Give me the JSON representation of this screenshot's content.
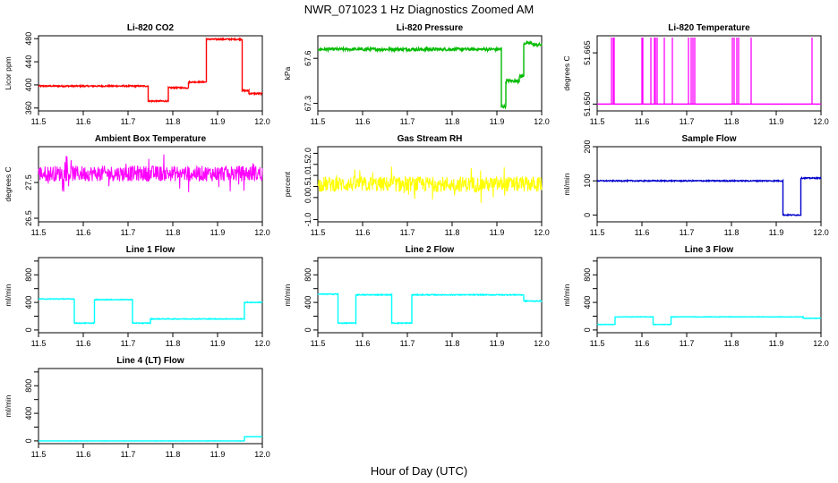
{
  "title": "NWR_071023  1 Hz Diagnostics Zoomed AM",
  "xlabel": "Hour of Day (UTC)",
  "chart_data": [
    {
      "type": "line",
      "title": "Li-820 CO2",
      "ylabel": "Licor ppm",
      "color": "#ff0000",
      "xlim": [
        11.5,
        12.0
      ],
      "ylim": [
        355,
        485
      ],
      "xticks": [
        11.5,
        11.6,
        11.7,
        11.8,
        11.9,
        12.0
      ],
      "yticks": [
        360,
        400,
        440,
        480
      ],
      "segments": [
        [
          11.5,
          11.745,
          398
        ],
        [
          11.745,
          11.79,
          372
        ],
        [
          11.79,
          11.835,
          395
        ],
        [
          11.835,
          11.875,
          405
        ],
        [
          11.875,
          11.955,
          479
        ],
        [
          11.955,
          11.97,
          390
        ],
        [
          11.97,
          12.0,
          385
        ]
      ],
      "noise": 1.2
    },
    {
      "type": "line",
      "title": "Li-820 Pressure",
      "ylabel": "kPa",
      "color": "#00bb00",
      "xlim": [
        11.5,
        12.0
      ],
      "ylim": [
        67.25,
        67.75
      ],
      "xticks": [
        11.5,
        11.6,
        11.7,
        11.8,
        11.9,
        12.0
      ],
      "yticks": [
        67.3,
        67.6
      ],
      "segments": [
        [
          11.5,
          11.91,
          67.66
        ],
        [
          11.91,
          11.92,
          67.28
        ],
        [
          11.92,
          11.95,
          67.45
        ],
        [
          11.95,
          11.96,
          67.48
        ],
        [
          11.96,
          11.98,
          67.7
        ],
        [
          11.98,
          12.0,
          67.69
        ]
      ],
      "noise": 0.01
    },
    {
      "type": "spikes",
      "title": "Li-820 Temperature",
      "ylabel": "degrees C",
      "color": "#ff00ff",
      "xlim": [
        11.5,
        12.0
      ],
      "ylim": [
        51.648,
        51.67
      ],
      "xticks": [
        11.5,
        11.6,
        11.7,
        11.8,
        11.9,
        12.0
      ],
      "yticks": [
        51.65,
        51.665
      ],
      "ytick_labels": [
        "51.650",
        "51.665"
      ],
      "base": 51.65,
      "peak": 51.672,
      "spike_x": [
        11.532,
        11.536,
        11.538,
        11.6,
        11.602,
        11.62,
        11.628,
        11.63,
        11.634,
        11.65,
        11.668,
        11.704,
        11.71,
        11.714,
        11.718,
        11.802,
        11.806,
        11.812,
        11.816,
        11.844,
        11.98
      ]
    },
    {
      "type": "line",
      "title": "Ambient Box Temperature",
      "ylabel": "degrees C",
      "color": "#ff00ff",
      "xlim": [
        11.5,
        12.0
      ],
      "ylim": [
        26.4,
        28.5
      ],
      "xticks": [
        11.5,
        11.6,
        11.7,
        11.8,
        11.9,
        12.0
      ],
      "yticks": [
        26.5,
        27.5
      ],
      "segments": [
        [
          11.5,
          12.0,
          27.75
        ]
      ],
      "noise": 0.22
    },
    {
      "type": "line",
      "title": "Gas Stream RH",
      "ylabel": "percent",
      "color": "#ffff00",
      "xlim": [
        11.5,
        12.0
      ],
      "ylim": [
        -1.1,
        2.3
      ],
      "xticks": [
        11.5,
        11.6,
        11.7,
        11.8,
        11.9,
        12.0
      ],
      "yticks": [
        -1.0,
        0.0,
        0.5,
        1.0,
        1.5,
        2.0
      ],
      "ytick_labels": [
        "-1.0",
        "0.0",
        "0.5",
        "1.0",
        "1.5",
        "2.0"
      ],
      "segments": [
        [
          11.5,
          12.0,
          0.6
        ]
      ],
      "noise": 0.35
    },
    {
      "type": "line",
      "title": "Sample Flow",
      "ylabel": "ml/min",
      "color": "#0000cc",
      "xlim": [
        11.5,
        12.0
      ],
      "ylim": [
        -20,
        200
      ],
      "xticks": [
        11.5,
        11.6,
        11.7,
        11.8,
        11.9,
        12.0
      ],
      "yticks": [
        0,
        100,
        200
      ],
      "segments": [
        [
          11.5,
          11.915,
          100
        ],
        [
          11.915,
          11.955,
          0
        ],
        [
          11.955,
          12.0,
          108
        ]
      ],
      "noise": 1.5
    },
    {
      "type": "line",
      "title": "Line 1 Flow",
      "ylabel": "ml/min",
      "color": "#00ffff",
      "xlim": [
        11.5,
        12.0
      ],
      "ylim": [
        -40,
        1050
      ],
      "xticks": [
        11.5,
        11.6,
        11.7,
        11.8,
        11.9,
        12.0
      ],
      "yticks": [
        0,
        200,
        400,
        600,
        800,
        1000
      ],
      "ytick_labels": [
        "0",
        "",
        "400",
        "",
        "800",
        ""
      ],
      "segments": [
        [
          11.5,
          11.58,
          450
        ],
        [
          11.58,
          11.625,
          100
        ],
        [
          11.625,
          11.71,
          440
        ],
        [
          11.71,
          11.75,
          100
        ],
        [
          11.75,
          11.96,
          160
        ],
        [
          11.96,
          12.0,
          400
        ]
      ],
      "noise": 5
    },
    {
      "type": "line",
      "title": "Line 2 Flow",
      "ylabel": "ml/min",
      "color": "#00ffff",
      "xlim": [
        11.5,
        12.0
      ],
      "ylim": [
        -40,
        1050
      ],
      "xticks": [
        11.5,
        11.6,
        11.7,
        11.8,
        11.9,
        12.0
      ],
      "yticks": [
        0,
        200,
        400,
        600,
        800,
        1000
      ],
      "ytick_labels": [
        "0",
        "",
        "400",
        "",
        "800",
        ""
      ],
      "segments": [
        [
          11.5,
          11.545,
          520
        ],
        [
          11.545,
          11.585,
          100
        ],
        [
          11.585,
          11.665,
          510
        ],
        [
          11.665,
          11.71,
          100
        ],
        [
          11.71,
          11.96,
          510
        ],
        [
          11.96,
          12.0,
          420
        ]
      ],
      "noise": 6
    },
    {
      "type": "line",
      "title": "Line 3 Flow",
      "ylabel": "ml/min",
      "color": "#00ffff",
      "xlim": [
        11.5,
        12.0
      ],
      "ylim": [
        -40,
        1050
      ],
      "xticks": [
        11.5,
        11.6,
        11.7,
        11.8,
        11.9,
        12.0
      ],
      "yticks": [
        0,
        200,
        400,
        600,
        800,
        1000
      ],
      "ytick_labels": [
        "0",
        "",
        "400",
        "",
        "800",
        ""
      ],
      "segments": [
        [
          11.5,
          11.54,
          80
        ],
        [
          11.54,
          11.625,
          190
        ],
        [
          11.625,
          11.665,
          80
        ],
        [
          11.665,
          11.96,
          190
        ],
        [
          11.96,
          12.0,
          170
        ]
      ],
      "noise": 3
    },
    {
      "type": "line",
      "title": "Line 4 (LT) Flow",
      "ylabel": "ml/min",
      "color": "#00ffff",
      "xlim": [
        11.5,
        12.0
      ],
      "ylim": [
        -40,
        1050
      ],
      "xticks": [
        11.5,
        11.6,
        11.7,
        11.8,
        11.9,
        12.0
      ],
      "yticks": [
        0,
        200,
        400,
        600,
        800,
        1000
      ],
      "ytick_labels": [
        "0",
        "",
        "400",
        "",
        "800",
        ""
      ],
      "segments": [
        [
          11.5,
          11.96,
          0
        ],
        [
          11.96,
          12.0,
          60
        ]
      ],
      "noise": 1
    }
  ]
}
